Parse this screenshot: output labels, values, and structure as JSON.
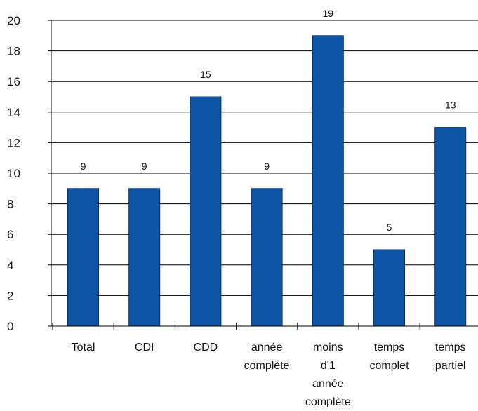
{
  "chart_data": {
    "type": "bar",
    "categories": [
      [
        "Total"
      ],
      [
        "CDI"
      ],
      [
        "CDD"
      ],
      [
        "année",
        "complète"
      ],
      [
        "moins",
        "d'1",
        "année",
        "complète"
      ],
      [
        "temps",
        "complet"
      ],
      [
        "temps",
        "partiel"
      ]
    ],
    "values": [
      9,
      9,
      15,
      9,
      19,
      5,
      13
    ],
    "data_labels": [
      "9",
      "9",
      "15",
      "9",
      "19",
      "5",
      "13"
    ],
    "ylim": [
      0,
      20
    ],
    "yticks": [
      0,
      2,
      4,
      6,
      8,
      10,
      12,
      14,
      16,
      18,
      20
    ],
    "grid": true,
    "legend": "none",
    "title": "",
    "xlabel": "",
    "ylabel": "",
    "colors": {
      "bar": "#0e55a6",
      "bar_stroke": "#0b2f5c",
      "grid": "#000000",
      "text": "#111111"
    }
  }
}
